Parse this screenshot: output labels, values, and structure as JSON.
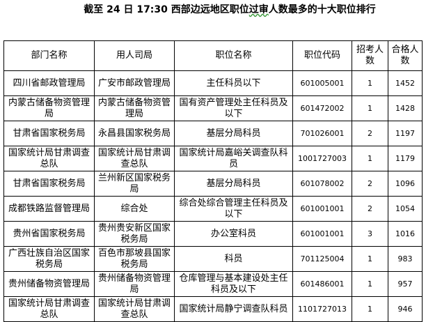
{
  "title_pre": "截至 24 日 17:30 西部边远地区职位",
  "title_underlined": "过审",
  "title_post": "人数最多的十大职位排行",
  "headers": [
    "部门名称",
    "用人司局",
    "职位名称",
    "职位代码",
    "招考人数",
    "合格人数"
  ],
  "rows": [
    [
      "四川省邮政管理局",
      "广安市邮政管理局",
      "主任科员以下",
      "601005001",
      "1",
      "1452"
    ],
    [
      "内蒙古储备物资管理局",
      "内蒙古储备物资管理局",
      "国有资产管理处主任科员及以下",
      "601472002",
      "1",
      "1428"
    ],
    [
      "甘肃省国家税务局",
      "永昌县国家税务局",
      "基层分局科员",
      "701026001",
      "2",
      "1197"
    ],
    [
      "国家统计局甘肃调查总队",
      "国家统计局甘肃调查总队",
      "国家统计局嘉峪关调查队科员",
      "1001727003",
      "1",
      "1179"
    ],
    [
      "甘肃省国家税务局",
      "兰州新区国家税务局",
      "基层分局科员",
      "601078002",
      "2",
      "1096"
    ],
    [
      "成都铁路监督管理局",
      "综合处",
      "综合处综合管理主任科员及以下",
      "601001001",
      "2",
      "1054"
    ],
    [
      "贵州省国家税务局",
      "贵州贵安新区国家税务局",
      "办公室科员",
      "601001001",
      "3",
      "1016"
    ],
    [
      "广西壮族自治区国家税务局",
      "百色市那坡县国家税务局",
      "科员",
      "701125004",
      "1",
      "983"
    ],
    [
      "贵州储备物资管理局",
      "贵州储备物资管理局",
      "仓库管理与基本建设处主任科员及以下",
      "601486001",
      "1",
      "957"
    ],
    [
      "国家统计局甘肃调查总队",
      "国家统计局甘肃调查总队",
      "国家统计局静宁调查队科员",
      "1101727013",
      "1",
      "946"
    ]
  ]
}
